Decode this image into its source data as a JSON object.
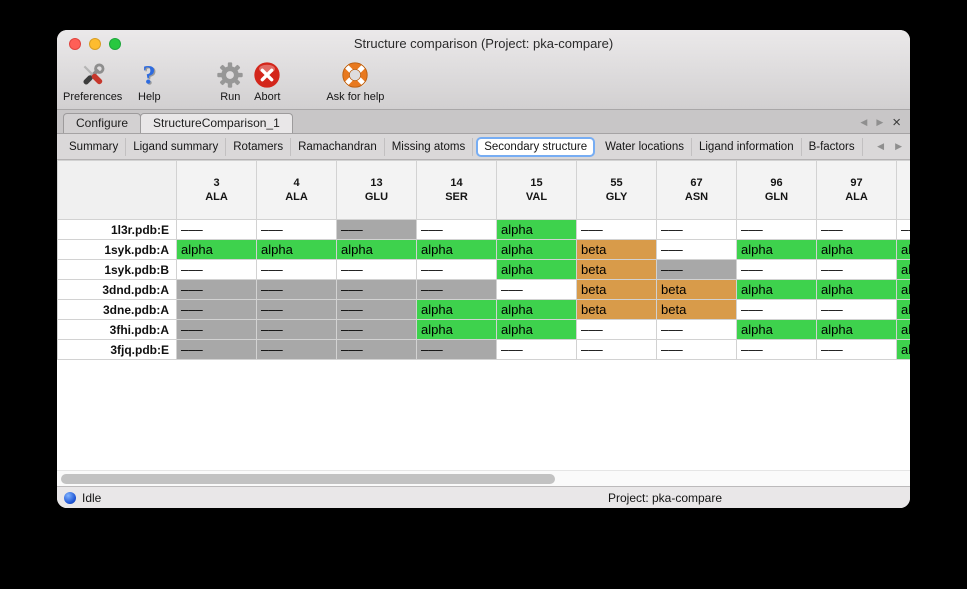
{
  "window": {
    "title": "Structure comparison (Project: pka-compare)"
  },
  "toolbar": {
    "items": [
      {
        "label": "Preferences",
        "icon": "tools-icon"
      },
      {
        "label": "Help",
        "icon": "question-icon"
      },
      {
        "label": "Run",
        "icon": "gear-icon"
      },
      {
        "label": "Abort",
        "icon": "abort-icon"
      },
      {
        "label": "Ask for help",
        "icon": "life-ring-icon"
      }
    ]
  },
  "tabs": {
    "items": [
      {
        "label": "Configure",
        "active": false
      },
      {
        "label": "StructureComparison_1",
        "active": true
      }
    ],
    "controls": {
      "prev": "◀",
      "next": "▶",
      "close": "×"
    }
  },
  "subtabs": {
    "items": [
      "Summary",
      "Ligand summary",
      "Rotamers",
      "Ramachandran",
      "Missing atoms",
      "Secondary structure",
      "Water locations",
      "Ligand information",
      "B-factors"
    ],
    "active": "Secondary structure",
    "controls": {
      "prev": "◀",
      "next": "▶"
    }
  },
  "table": {
    "state_colors": {
      "alpha": "#3ed24d",
      "beta": "#d89b4a",
      "missing": "#a8a8a8",
      "none": "#ffffff"
    },
    "columns": [
      {
        "number": "3",
        "residue": "ALA"
      },
      {
        "number": "4",
        "residue": "ALA"
      },
      {
        "number": "13",
        "residue": "GLU"
      },
      {
        "number": "14",
        "residue": "SER"
      },
      {
        "number": "15",
        "residue": "VAL"
      },
      {
        "number": "55",
        "residue": "GLY"
      },
      {
        "number": "67",
        "residue": "ASN"
      },
      {
        "number": "96",
        "residue": "GLN"
      },
      {
        "number": "97",
        "residue": "ALA"
      },
      {
        "number": "",
        "residue": ""
      }
    ],
    "rows": [
      {
        "name": "1l3r.pdb:E",
        "cells": [
          {
            "text": "–––",
            "state": "none"
          },
          {
            "text": "–––",
            "state": "none"
          },
          {
            "text": "–––",
            "state": "missing"
          },
          {
            "text": "–––",
            "state": "none"
          },
          {
            "text": "alpha",
            "state": "alpha"
          },
          {
            "text": "–––",
            "state": "none"
          },
          {
            "text": "–––",
            "state": "none"
          },
          {
            "text": "–––",
            "state": "none"
          },
          {
            "text": "–––",
            "state": "none"
          },
          {
            "text": "–––",
            "state": "none"
          }
        ]
      },
      {
        "name": "1syk.pdb:A",
        "cells": [
          {
            "text": "alpha",
            "state": "alpha"
          },
          {
            "text": "alpha",
            "state": "alpha"
          },
          {
            "text": "alpha",
            "state": "alpha"
          },
          {
            "text": "alpha",
            "state": "alpha"
          },
          {
            "text": "alpha",
            "state": "alpha"
          },
          {
            "text": "beta",
            "state": "beta"
          },
          {
            "text": "–––",
            "state": "none"
          },
          {
            "text": "alpha",
            "state": "alpha"
          },
          {
            "text": "alpha",
            "state": "alpha"
          },
          {
            "text": "alpha",
            "state": "alpha"
          }
        ]
      },
      {
        "name": "1syk.pdb:B",
        "cells": [
          {
            "text": "–––",
            "state": "none"
          },
          {
            "text": "–––",
            "state": "none"
          },
          {
            "text": "–––",
            "state": "none"
          },
          {
            "text": "–––",
            "state": "none"
          },
          {
            "text": "alpha",
            "state": "alpha"
          },
          {
            "text": "beta",
            "state": "beta"
          },
          {
            "text": "–––",
            "state": "missing"
          },
          {
            "text": "–––",
            "state": "none"
          },
          {
            "text": "–––",
            "state": "none"
          },
          {
            "text": "alpha",
            "state": "alpha"
          }
        ]
      },
      {
        "name": "3dnd.pdb:A",
        "cells": [
          {
            "text": "–––",
            "state": "missing"
          },
          {
            "text": "–––",
            "state": "missing"
          },
          {
            "text": "–––",
            "state": "missing"
          },
          {
            "text": "–––",
            "state": "missing"
          },
          {
            "text": "–––",
            "state": "none"
          },
          {
            "text": "beta",
            "state": "beta"
          },
          {
            "text": "beta",
            "state": "beta"
          },
          {
            "text": "alpha",
            "state": "alpha"
          },
          {
            "text": "alpha",
            "state": "alpha"
          },
          {
            "text": "alpha",
            "state": "alpha"
          }
        ]
      },
      {
        "name": "3dne.pdb:A",
        "cells": [
          {
            "text": "–––",
            "state": "missing"
          },
          {
            "text": "–––",
            "state": "missing"
          },
          {
            "text": "–––",
            "state": "missing"
          },
          {
            "text": "alpha",
            "state": "alpha"
          },
          {
            "text": "alpha",
            "state": "alpha"
          },
          {
            "text": "beta",
            "state": "beta"
          },
          {
            "text": "beta",
            "state": "beta"
          },
          {
            "text": "–––",
            "state": "none"
          },
          {
            "text": "–––",
            "state": "none"
          },
          {
            "text": "alpha",
            "state": "alpha"
          }
        ]
      },
      {
        "name": "3fhi.pdb:A",
        "cells": [
          {
            "text": "–––",
            "state": "missing"
          },
          {
            "text": "–––",
            "state": "missing"
          },
          {
            "text": "–––",
            "state": "missing"
          },
          {
            "text": "alpha",
            "state": "alpha"
          },
          {
            "text": "alpha",
            "state": "alpha"
          },
          {
            "text": "–––",
            "state": "none"
          },
          {
            "text": "–––",
            "state": "none"
          },
          {
            "text": "alpha",
            "state": "alpha"
          },
          {
            "text": "alpha",
            "state": "alpha"
          },
          {
            "text": "alpha",
            "state": "alpha"
          }
        ]
      },
      {
        "name": "3fjq.pdb:E",
        "cells": [
          {
            "text": "–––",
            "state": "missing"
          },
          {
            "text": "–––",
            "state": "missing"
          },
          {
            "text": "–––",
            "state": "missing"
          },
          {
            "text": "–––",
            "state": "missing"
          },
          {
            "text": "–––",
            "state": "none"
          },
          {
            "text": "–––",
            "state": "none"
          },
          {
            "text": "–––",
            "state": "none"
          },
          {
            "text": "–––",
            "state": "none"
          },
          {
            "text": "–––",
            "state": "none"
          },
          {
            "text": "alpha",
            "state": "alpha"
          }
        ]
      }
    ]
  },
  "statusbar": {
    "status": "Idle",
    "project": "Project: pka-compare"
  }
}
